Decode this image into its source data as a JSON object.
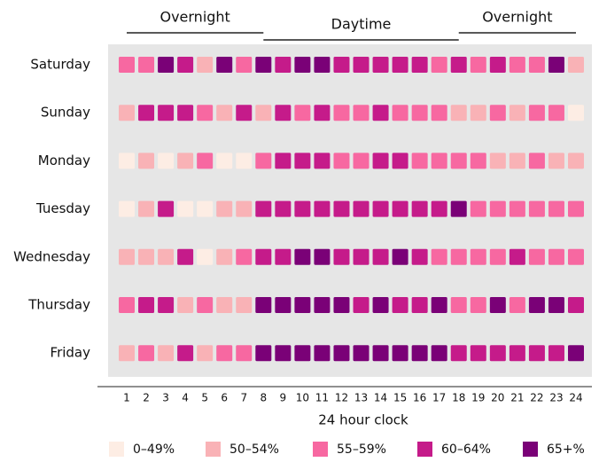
{
  "chart_data": {
    "type": "heatmap",
    "xlabel": "24 hour clock",
    "categories": [
      1,
      2,
      3,
      4,
      5,
      6,
      7,
      8,
      9,
      10,
      11,
      12,
      13,
      14,
      15,
      16,
      17,
      18,
      19,
      20,
      21,
      22,
      23,
      24
    ],
    "bands": [
      {
        "label": "Overnight",
        "from": 1,
        "to": 8
      },
      {
        "label": "Daytime",
        "from": 8,
        "to": 18
      },
      {
        "label": "Overnight",
        "from": 18,
        "to": 24
      }
    ],
    "legend": [
      {
        "name": "0–49%",
        "color": "#fdede4"
      },
      {
        "name": "50–54%",
        "color": "#f9b2b6"
      },
      {
        "name": "55–59%",
        "color": "#f768a1"
      },
      {
        "name": "60–64%",
        "color": "#c51b8a"
      },
      {
        "name": "65+%",
        "color": "#7a0177"
      }
    ],
    "rows": [
      {
        "name": "Saturday",
        "values": [
          2,
          2,
          4,
          3,
          1,
          4,
          2,
          4,
          3,
          4,
          4,
          3,
          3,
          3,
          3,
          3,
          2,
          3,
          2,
          3,
          2,
          2,
          4,
          1
        ]
      },
      {
        "name": "Sunday",
        "values": [
          1,
          3,
          3,
          3,
          2,
          1,
          3,
          1,
          3,
          2,
          3,
          2,
          2,
          3,
          2,
          2,
          2,
          1,
          1,
          2,
          1,
          2,
          2,
          0
        ]
      },
      {
        "name": "Monday",
        "values": [
          0,
          1,
          0,
          1,
          2,
          0,
          0,
          2,
          3,
          3,
          3,
          2,
          2,
          3,
          3,
          2,
          2,
          2,
          2,
          1,
          1,
          2,
          1,
          1
        ]
      },
      {
        "name": "Tuesday",
        "values": [
          0,
          1,
          3,
          0,
          0,
          1,
          1,
          3,
          3,
          3,
          3,
          3,
          3,
          3,
          3,
          3,
          3,
          4,
          2,
          2,
          2,
          2,
          2,
          2
        ]
      },
      {
        "name": "Wednesday",
        "values": [
          1,
          1,
          1,
          3,
          0,
          1,
          2,
          3,
          3,
          4,
          4,
          3,
          3,
          3,
          4,
          3,
          2,
          2,
          2,
          2,
          3,
          2,
          2,
          2
        ]
      },
      {
        "name": "Thursday",
        "values": [
          2,
          3,
          3,
          1,
          2,
          1,
          1,
          4,
          4,
          4,
          4,
          4,
          3,
          4,
          3,
          3,
          4,
          2,
          2,
          4,
          2,
          4,
          4,
          3
        ]
      },
      {
        "name": "Friday",
        "values": [
          1,
          2,
          1,
          3,
          1,
          2,
          2,
          4,
          4,
          4,
          4,
          4,
          4,
          4,
          4,
          4,
          4,
          3,
          3,
          3,
          3,
          3,
          3,
          4
        ]
      }
    ]
  }
}
